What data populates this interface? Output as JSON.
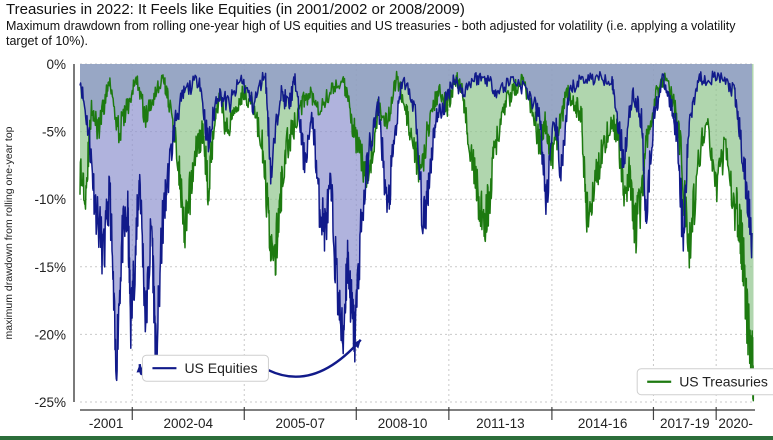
{
  "chart_data": {
    "type": "area",
    "title": "Treasuries in 2022: It Feels like Equities (in 2001/2002 or 2008/2009)",
    "subtitle": "Maximum drawdown from rolling one-year high of US equities and US treasuries - both adjusted for volatility (i.e. applying a volatility target of 10%).",
    "xlabel": "",
    "ylabel": "maximum drawdown from rolling one-year top",
    "ylim": [
      -25,
      0
    ],
    "xlim": [
      2000,
      2022.6
    ],
    "y_ticks": [
      "0%",
      "-5%",
      "-10%",
      "-15%",
      "-20%",
      "-25%"
    ],
    "x_ticks": [
      "-2001",
      "2002-04",
      "2005-07",
      "2008-10",
      "2011-13",
      "2014-16",
      "2017-19",
      "2020-"
    ],
    "grid": true,
    "series": [
      {
        "name": "US Equities",
        "color": "#111a8a",
        "fill": "#8e93cf",
        "x": [
          2000.0,
          2000.3,
          2000.5,
          2000.8,
          2001.0,
          2001.2,
          2001.4,
          2001.6,
          2001.7,
          2001.9,
          2002.0,
          2002.2,
          2002.4,
          2002.55,
          2002.75,
          2002.9,
          2003.2,
          2003.5,
          2004.0,
          2004.3,
          2004.6,
          2005.0,
          2005.4,
          2005.8,
          2006.2,
          2006.4,
          2006.7,
          2007.0,
          2007.2,
          2007.5,
          2007.8,
          2008.0,
          2008.2,
          2008.4,
          2008.6,
          2008.8,
          2008.95,
          2009.1,
          2009.2,
          2009.4,
          2009.7,
          2010.0,
          2010.3,
          2010.5,
          2010.8,
          2011.2,
          2011.5,
          2011.7,
          2011.9,
          2012.2,
          2012.5,
          2012.8,
          2013.2,
          2013.6,
          2014.0,
          2014.5,
          2015.0,
          2015.4,
          2015.6,
          2015.9,
          2016.1,
          2016.4,
          2016.8,
          2017.3,
          2017.8,
          2018.0,
          2018.2,
          2018.5,
          2018.8,
          2018.95,
          2019.2,
          2019.5,
          2019.8,
          2020.0,
          2020.2,
          2020.4,
          2020.7,
          2021.0,
          2021.5,
          2021.9,
          2022.1,
          2022.3,
          2022.5
        ],
        "values": [
          -1,
          -5,
          -10,
          -14,
          -9,
          -22.5,
          -13,
          -11,
          -19,
          -12,
          -8,
          -19,
          -11.5,
          -22,
          -12,
          -9,
          -4,
          -2,
          -1,
          -6,
          -2,
          -3,
          -1,
          -3,
          -0.5,
          -8,
          -2,
          -3,
          -1,
          -7,
          -4,
          -10,
          -12,
          -9,
          -16,
          -20.5,
          -14,
          -18,
          -20,
          -12,
          -6,
          -3,
          -11,
          -6,
          -1,
          -3,
          -12,
          -8,
          -4,
          -3,
          -1,
          -2,
          -1,
          -1,
          -2,
          -1,
          -2,
          -4,
          -10,
          -4,
          -8,
          -2,
          -1,
          -1,
          -1,
          -4,
          -7,
          -2,
          -4,
          -11,
          -4,
          -1,
          -3,
          -5,
          -13,
          -4,
          -1,
          -1,
          -1,
          -2,
          -5,
          -9,
          -12.5
        ]
      },
      {
        "name": "US Treasuries",
        "color": "#1d7a10",
        "fill": "#8fc48c",
        "x": [
          2000.0,
          2000.2,
          2000.4,
          2000.6,
          2000.8,
          2001.0,
          2001.3,
          2001.6,
          2001.9,
          2002.2,
          2002.5,
          2002.8,
          2003.0,
          2003.3,
          2003.5,
          2003.7,
          2003.9,
          2004.1,
          2004.3,
          2004.5,
          2004.7,
          2004.9,
          2005.2,
          2005.5,
          2005.8,
          2006.1,
          2006.3,
          2006.5,
          2006.7,
          2006.9,
          2007.1,
          2007.4,
          2007.7,
          2008.0,
          2008.4,
          2008.8,
          2009.0,
          2009.2,
          2009.4,
          2009.7,
          2010.0,
          2010.3,
          2010.6,
          2010.9,
          2011.1,
          2011.4,
          2011.7,
          2012.0,
          2012.3,
          2012.6,
          2012.8,
          2013.0,
          2013.3,
          2013.5,
          2013.7,
          2013.9,
          2014.2,
          2014.5,
          2014.8,
          2015.1,
          2015.4,
          2015.6,
          2015.8,
          2016.0,
          2016.3,
          2016.6,
          2016.8,
          2016.95,
          2017.2,
          2017.5,
          2017.8,
          2018.0,
          2018.2,
          2018.4,
          2018.6,
          2018.8,
          2019.0,
          2019.3,
          2019.6,
          2019.9,
          2020.1,
          2020.4,
          2020.7,
          2021.0,
          2021.3,
          2021.6,
          2021.9,
          2022.1,
          2022.2,
          2022.35,
          2022.45,
          2022.55
        ],
        "values": [
          -8,
          -9,
          -3,
          -5,
          -3,
          -1,
          -5,
          -3,
          -1,
          -4,
          -2,
          -1,
          -3,
          -7,
          -13,
          -9,
          -6,
          -5,
          -9,
          -4,
          -2,
          -5,
          -3,
          -2,
          -3,
          -6,
          -11,
          -15,
          -10,
          -6,
          -5,
          -3,
          -2,
          -3,
          -2,
          -1,
          -3,
          -5,
          -7,
          -8,
          -3,
          -4,
          -1,
          -3,
          -6,
          -8,
          -4,
          -2,
          -3,
          -1,
          -2,
          -5,
          -9,
          -12,
          -10,
          -6,
          -3,
          -2,
          -1,
          -3,
          -6,
          -4,
          -7,
          -5,
          -2,
          -3,
          -4,
          -11,
          -9,
          -6,
          -4,
          -5,
          -9,
          -8,
          -12,
          -10,
          -5,
          -2,
          -1,
          -3,
          -6,
          -14,
          -7,
          -4,
          -9,
          -6,
          -10,
          -12,
          -14,
          -19,
          -20,
          -23
        ]
      }
    ],
    "annotations": [
      {
        "label": "US Equities",
        "from_x": 2004.2,
        "from_y": -22.5,
        "to_x": [
          2002.0,
          2009.4
        ],
        "to_y": [
          -22.2,
          -20.4
        ]
      },
      {
        "label": "US Treasuries",
        "from_x": 2021.1,
        "from_y": -23.5,
        "to_x": [
          2022.55
        ],
        "to_y": [
          -23.0
        ]
      }
    ]
  }
}
